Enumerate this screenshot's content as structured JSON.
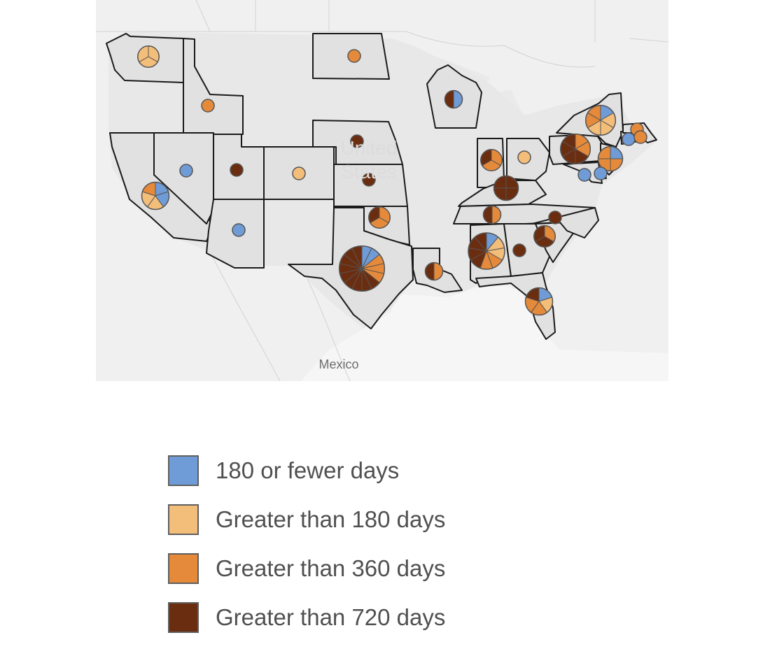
{
  "map": {
    "country_label": "Mexico",
    "background_label_line1": "United",
    "background_label_line2": "States",
    "state_fill": "#e1e1e1",
    "state_stroke": "#1a1a1a"
  },
  "legend": {
    "items": [
      {
        "label": "180 or fewer days",
        "color": "#6f9bd6"
      },
      {
        "label": "Greater than 180 days",
        "color": "#f3bd7a"
      },
      {
        "label": "Greater than 360 days",
        "color": "#e58a3a"
      },
      {
        "label": "Greater than 720 days",
        "color": "#6b2d10"
      }
    ]
  },
  "markers": [
    {
      "state": "WA",
      "counts": [
        0,
        3,
        0,
        0
      ]
    },
    {
      "state": "ID",
      "counts": [
        0,
        0,
        1,
        0
      ]
    },
    {
      "state": "ND",
      "counts": [
        0,
        0,
        1,
        0
      ]
    },
    {
      "state": "WI",
      "counts": [
        1,
        0,
        0,
        1
      ]
    },
    {
      "state": "NE",
      "counts": [
        0,
        0,
        0,
        1
      ]
    },
    {
      "state": "NV",
      "counts": [
        1,
        0,
        0,
        0
      ]
    },
    {
      "state": "UT",
      "counts": [
        0,
        0,
        0,
        1
      ]
    },
    {
      "state": "CO",
      "counts": [
        0,
        1,
        0,
        0
      ]
    },
    {
      "state": "KS",
      "counts": [
        0,
        0,
        0,
        1
      ]
    },
    {
      "state": "CA",
      "counts": [
        2,
        2,
        1,
        0
      ]
    },
    {
      "state": "AZ",
      "counts": [
        1,
        0,
        0,
        0
      ]
    },
    {
      "state": "OK",
      "counts": [
        0,
        0,
        2,
        1
      ]
    },
    {
      "state": "TX",
      "counts": [
        2,
        0,
        3,
        9
      ]
    },
    {
      "state": "LA",
      "counts": [
        0,
        0,
        1,
        1
      ]
    },
    {
      "state": "IN",
      "counts": [
        0,
        0,
        2,
        1
      ]
    },
    {
      "state": "OH",
      "counts": [
        0,
        1,
        0,
        0
      ]
    },
    {
      "state": "KY",
      "counts": [
        0,
        0,
        0,
        4
      ]
    },
    {
      "state": "TN",
      "counts": [
        0,
        0,
        1,
        1
      ]
    },
    {
      "state": "AL",
      "counts": [
        1,
        2,
        2,
        4
      ]
    },
    {
      "state": "GA",
      "counts": [
        0,
        0,
        0,
        1
      ]
    },
    {
      "state": "SC",
      "counts": [
        0,
        0,
        1,
        2
      ]
    },
    {
      "state": "NC",
      "counts": [
        0,
        0,
        0,
        1
      ]
    },
    {
      "state": "FL",
      "counts": [
        1,
        1,
        2,
        1
      ]
    },
    {
      "state": "PA",
      "counts": [
        0,
        0,
        2,
        4
      ]
    },
    {
      "state": "NY",
      "counts": [
        1,
        3,
        2,
        0
      ]
    },
    {
      "state": "NJ",
      "counts": [
        1,
        0,
        3,
        0
      ]
    },
    {
      "state": "MD",
      "counts": [
        1,
        0,
        0,
        0
      ]
    },
    {
      "state": "DE",
      "counts": [
        1,
        0,
        0,
        0
      ]
    },
    {
      "state": "CT",
      "counts": [
        1,
        0,
        0,
        0
      ]
    },
    {
      "state": "MA",
      "counts": [
        0,
        0,
        1,
        0
      ]
    },
    {
      "state": "RI",
      "counts": [
        0,
        0,
        1,
        0
      ]
    }
  ]
}
